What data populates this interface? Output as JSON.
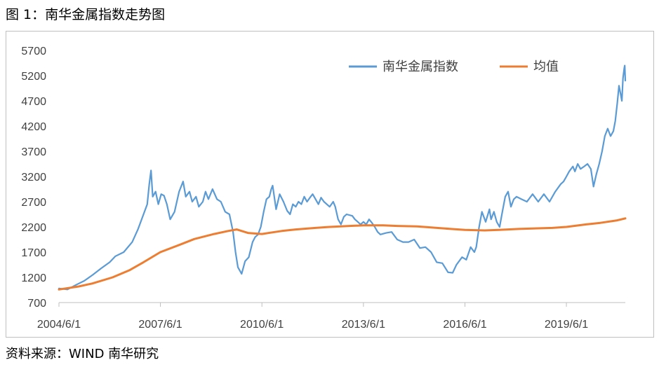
{
  "figure_title": "图 1：南华金属指数走势图",
  "source_note": "资料来源：WIND  南华研究",
  "colors": {
    "index": "#5b9bd5",
    "mean": "#ed7d31",
    "axis": "#bfbfbf",
    "text": "#404040"
  },
  "chart_data": {
    "type": "line",
    "title": "",
    "xlabel": "",
    "ylabel": "",
    "ylim": [
      700,
      5700
    ],
    "yticks": [
      "700",
      "1200",
      "1700",
      "2200",
      "2700",
      "3200",
      "3700",
      "4200",
      "4700",
      "5200",
      "5700"
    ],
    "xticks": [
      "2004/6/1",
      "2007/6/1",
      "2010/6/1",
      "2013/6/1",
      "2016/6/1",
      "2019/6/1"
    ],
    "xrange": [
      "2004/6/1",
      "2021/2/26"
    ],
    "grid": false,
    "legend_position": "top-right",
    "series": [
      {
        "name": "南华金属指数",
        "color": "#5b9bd5",
        "points": [
          [
            "2004/6/1",
            980
          ],
          [
            "2004/9/1",
            960
          ],
          [
            "2004/12/1",
            1050
          ],
          [
            "2005/3/1",
            1130
          ],
          [
            "2005/6/1",
            1250
          ],
          [
            "2005/9/1",
            1380
          ],
          [
            "2005/12/1",
            1500
          ],
          [
            "2006/2/1",
            1620
          ],
          [
            "2006/5/1",
            1700
          ],
          [
            "2006/8/1",
            1900
          ],
          [
            "2006/10/1",
            2150
          ],
          [
            "2006/12/1",
            2450
          ],
          [
            "2007/1/10",
            2650
          ],
          [
            "2007/2/1",
            3050
          ],
          [
            "2007/2/20",
            3320
          ],
          [
            "2007/3/10",
            2800
          ],
          [
            "2007/4/10",
            2900
          ],
          [
            "2007/5/10",
            2650
          ],
          [
            "2007/6/10",
            2850
          ],
          [
            "2007/7/10",
            2820
          ],
          [
            "2007/8/10",
            2650
          ],
          [
            "2007/9/15",
            2350
          ],
          [
            "2007/11/1",
            2500
          ],
          [
            "2007/12/20",
            2900
          ],
          [
            "2008/2/1",
            3100
          ],
          [
            "2008/3/1",
            2800
          ],
          [
            "2008/4/10",
            2900
          ],
          [
            "2008/5/10",
            2700
          ],
          [
            "2008/6/20",
            2800
          ],
          [
            "2008/7/20",
            2600
          ],
          [
            "2008/9/1",
            2700
          ],
          [
            "2008/10/1",
            2900
          ],
          [
            "2008/11/1",
            2750
          ],
          [
            "2008/12/15",
            2950
          ],
          [
            "2009/2/1",
            2750
          ],
          [
            "2009/3/15",
            2700
          ],
          [
            "2009/5/1",
            2500
          ],
          [
            "2009/6/15",
            2450
          ],
          [
            "2009/7/25",
            2100
          ],
          [
            "2009/8/20",
            1700
          ],
          [
            "2009/9/15",
            1400
          ],
          [
            "2009/10/25",
            1270
          ],
          [
            "2009/12/1",
            1520
          ],
          [
            "2010/1/10",
            1600
          ],
          [
            "2010/2/20",
            1900
          ],
          [
            "2010/3/20",
            2000
          ],
          [
            "2010/4/20",
            2050
          ],
          [
            "2010/5/20",
            2200
          ],
          [
            "2010/6/20",
            2500
          ],
          [
            "2010/7/20",
            2750
          ],
          [
            "2010/8/20",
            2800
          ],
          [
            "2010/9/10",
            2950
          ],
          [
            "2010/9/25",
            3020
          ],
          [
            "2010/11/1",
            2550
          ],
          [
            "2010/12/10",
            2850
          ],
          [
            "2011/1/20",
            2700
          ],
          [
            "2011/3/1",
            2520
          ],
          [
            "2011/4/1",
            2450
          ],
          [
            "2011/5/1",
            2650
          ],
          [
            "2011/6/1",
            2600
          ],
          [
            "2011/7/1",
            2700
          ],
          [
            "2011/8/1",
            2650
          ],
          [
            "2011/9/1",
            2800
          ],
          [
            "2011/10/1",
            2700
          ],
          [
            "2011/11/1",
            2780
          ],
          [
            "2011/12/1",
            2850
          ],
          [
            "2012/2/1",
            2650
          ],
          [
            "2012/3/1",
            2780
          ],
          [
            "2012/4/1",
            2700
          ],
          [
            "2012/5/1",
            2650
          ],
          [
            "2012/6/1",
            2600
          ],
          [
            "2012/7/10",
            2700
          ],
          [
            "2012/8/1",
            2600
          ],
          [
            "2012/9/1",
            2350
          ],
          [
            "2012/10/1",
            2250
          ],
          [
            "2012/11/1",
            2400
          ],
          [
            "2012/12/1",
            2450
          ],
          [
            "2013/2/1",
            2420
          ],
          [
            "2013/3/1",
            2350
          ],
          [
            "2013/4/1",
            2300
          ],
          [
            "2013/5/1",
            2250
          ],
          [
            "2013/6/1",
            2300
          ],
          [
            "2013/7/1",
            2250
          ],
          [
            "2013/8/1",
            2350
          ],
          [
            "2013/9/1",
            2280
          ],
          [
            "2013/10/1",
            2200
          ],
          [
            "2013/11/1",
            2100
          ],
          [
            "2013/12/1",
            2050
          ],
          [
            "2014/2/1",
            2080
          ],
          [
            "2014/4/1",
            2100
          ],
          [
            "2014/6/1",
            1950
          ],
          [
            "2014/8/1",
            1900
          ],
          [
            "2014/10/1",
            1900
          ],
          [
            "2014/12/1",
            1950
          ],
          [
            "2015/2/1",
            1780
          ],
          [
            "2015/4/1",
            1800
          ],
          [
            "2015/6/1",
            1700
          ],
          [
            "2015/8/1",
            1500
          ],
          [
            "2015/10/1",
            1480
          ],
          [
            "2015/12/1",
            1300
          ],
          [
            "2016/1/20",
            1290
          ],
          [
            "2016/3/1",
            1450
          ],
          [
            "2016/5/1",
            1600
          ],
          [
            "2016/6/15",
            1550
          ],
          [
            "2016/8/1",
            1800
          ],
          [
            "2016/9/10",
            1700
          ],
          [
            "2016/10/1",
            1800
          ],
          [
            "2016/11/1",
            2200
          ],
          [
            "2016/12/1",
            2500
          ],
          [
            "2017/1/10",
            2300
          ],
          [
            "2017/2/20",
            2550
          ],
          [
            "2017/3/10",
            2350
          ],
          [
            "2017/4/10",
            2500
          ],
          [
            "2017/5/10",
            2300
          ],
          [
            "2017/6/10",
            2200
          ],
          [
            "2017/7/10",
            2500
          ],
          [
            "2017/8/10",
            2800
          ],
          [
            "2017/9/10",
            2900
          ],
          [
            "2017/10/10",
            2600
          ],
          [
            "2017/11/10",
            2750
          ],
          [
            "2017/12/10",
            2800
          ],
          [
            "2018/2/1",
            2750
          ],
          [
            "2018/4/1",
            2700
          ],
          [
            "2018/6/1",
            2850
          ],
          [
            "2018/8/1",
            2700
          ],
          [
            "2018/10/1",
            2850
          ],
          [
            "2018/12/1",
            2700
          ],
          [
            "2019/2/1",
            2900
          ],
          [
            "2019/4/1",
            3050
          ],
          [
            "2019/5/1",
            3100
          ],
          [
            "2019/6/1",
            3200
          ],
          [
            "2019/7/1",
            3300
          ],
          [
            "2019/8/10",
            3400
          ],
          [
            "2019/9/1",
            3300
          ],
          [
            "2019/10/1",
            3450
          ],
          [
            "2019/11/1",
            3350
          ],
          [
            "2019/12/10",
            3400
          ],
          [
            "2020/1/15",
            3450
          ],
          [
            "2020/2/20",
            3350
          ],
          [
            "2020/3/20",
            3000
          ],
          [
            "2020/4/20",
            3250
          ],
          [
            "2020/5/20",
            3450
          ],
          [
            "2020/6/20",
            3700
          ],
          [
            "2020/7/20",
            4000
          ],
          [
            "2020/8/20",
            4150
          ],
          [
            "2020/9/20",
            4000
          ],
          [
            "2020/10/20",
            4100
          ],
          [
            "2020/11/10",
            4300
          ],
          [
            "2020/12/1",
            4650
          ],
          [
            "2020/12/20",
            5000
          ],
          [
            "2021/1/5",
            4850
          ],
          [
            "2021/1/20",
            4700
          ],
          [
            "2021/2/1",
            5150
          ],
          [
            "2021/2/15",
            5350
          ],
          [
            "2021/2/20",
            5400
          ],
          [
            "2021/2/26",
            5100
          ]
        ]
      },
      {
        "name": "均值",
        "color": "#ed7d31",
        "points": [
          [
            "2004/6/1",
            960
          ],
          [
            "2005/1/1",
            1020
          ],
          [
            "2005/6/1",
            1080
          ],
          [
            "2006/1/1",
            1200
          ],
          [
            "2006/7/1",
            1340
          ],
          [
            "2006/12/1",
            1500
          ],
          [
            "2007/6/1",
            1700
          ],
          [
            "2008/1/1",
            1850
          ],
          [
            "2008/6/1",
            1960
          ],
          [
            "2009/1/1",
            2060
          ],
          [
            "2009/6/1",
            2120
          ],
          [
            "2009/9/1",
            2150
          ],
          [
            "2010/1/1",
            2080
          ],
          [
            "2010/6/1",
            2060
          ],
          [
            "2011/1/1",
            2120
          ],
          [
            "2011/6/1",
            2150
          ],
          [
            "2012/1/1",
            2180
          ],
          [
            "2012/6/1",
            2200
          ],
          [
            "2013/1/1",
            2220
          ],
          [
            "2013/6/1",
            2230
          ],
          [
            "2014/1/1",
            2230
          ],
          [
            "2014/6/1",
            2220
          ],
          [
            "2015/1/1",
            2210
          ],
          [
            "2015/6/1",
            2190
          ],
          [
            "2016/1/1",
            2160
          ],
          [
            "2016/6/1",
            2140
          ],
          [
            "2017/1/1",
            2130
          ],
          [
            "2017/6/1",
            2140
          ],
          [
            "2018/1/1",
            2160
          ],
          [
            "2018/6/1",
            2170
          ],
          [
            "2019/1/1",
            2180
          ],
          [
            "2019/6/1",
            2200
          ],
          [
            "2020/1/1",
            2250
          ],
          [
            "2020/6/1",
            2280
          ],
          [
            "2020/12/1",
            2330
          ],
          [
            "2021/2/26",
            2370
          ]
        ]
      }
    ]
  }
}
